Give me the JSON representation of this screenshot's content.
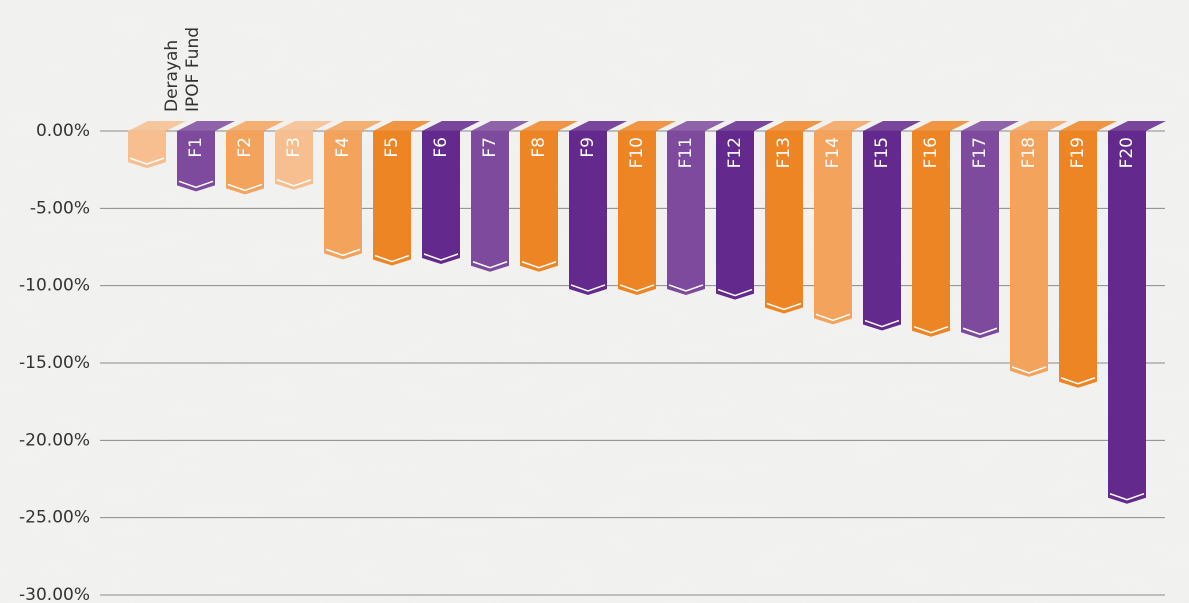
{
  "chart_data": {
    "type": "bar",
    "categories": [
      "Derayah IPOF Fund",
      "F1",
      "F2",
      "F3",
      "F4",
      "F5",
      "F6",
      "F7",
      "F8",
      "F9",
      "F10",
      "F11",
      "F12",
      "F13",
      "F14",
      "F15",
      "F16",
      "F17",
      "F18",
      "F19",
      "F20"
    ],
    "values": [
      -2.4,
      -3.9,
      -4.1,
      -3.8,
      -8.3,
      -8.7,
      -8.6,
      -9.1,
      -9.1,
      -10.6,
      -10.6,
      -10.6,
      -10.9,
      -11.8,
      -12.5,
      -12.9,
      -13.3,
      -13.4,
      -15.9,
      -16.6,
      -24.1
    ],
    "colors": [
      "#f7bf8f",
      "#7d4a9e",
      "#f4a35d",
      "#f7bf8f",
      "#f4a35d",
      "#ee8525",
      "#63298c",
      "#7d4a9e",
      "#ee8525",
      "#63298c",
      "#ee8525",
      "#7d4a9e",
      "#63298c",
      "#ee8525",
      "#f4a35d",
      "#63298c",
      "#ee8525",
      "#7d4a9e",
      "#f4a35d",
      "#ee8525",
      "#63298c"
    ],
    "ylim": [
      -30,
      0
    ],
    "yticks": [
      {
        "value": 0,
        "label": "0.00%"
      },
      {
        "value": -5,
        "label": "-5.00%"
      },
      {
        "value": -10,
        "label": "-10.00%"
      },
      {
        "value": -15,
        "label": "-15.00%"
      },
      {
        "value": -20,
        "label": "-20.00%"
      },
      {
        "value": -25,
        "label": "-25.00%"
      },
      {
        "value": -30,
        "label": "-30.00%"
      }
    ],
    "grid": true
  }
}
